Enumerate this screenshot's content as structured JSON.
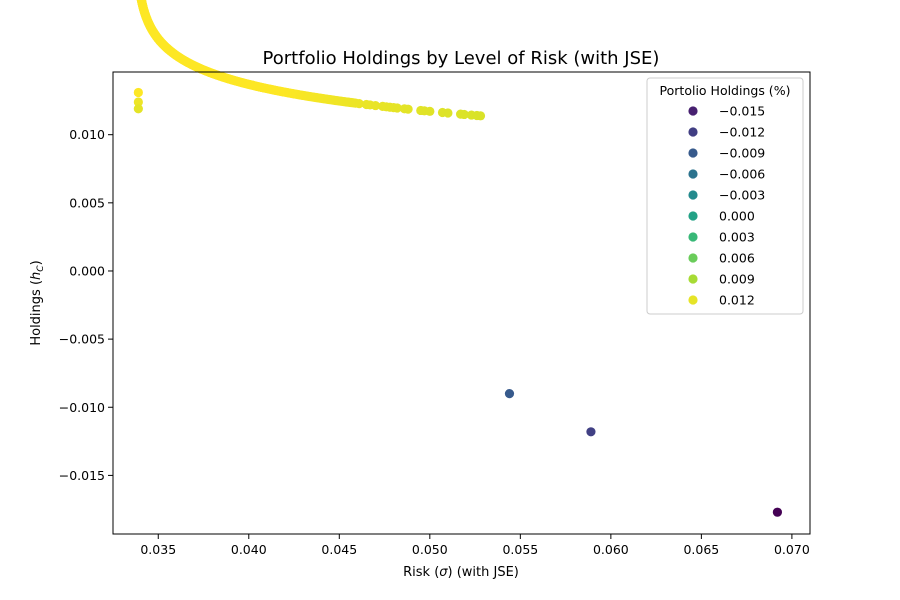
{
  "chart_data": {
    "type": "scatter",
    "title": "Portfolio Holdings by Level of Risk (with JSE)",
    "xlabel_main": "Risk (",
    "xlabel_symbol": "σ",
    "xlabel_tail": ") (with JSE)",
    "ylabel_main": "Holdings (",
    "ylabel_symbol": "h",
    "ylabel_sub": "C",
    "ylabel_tail": ")",
    "xlim": [
      0.0325,
      0.071
    ],
    "ylim": [
      -0.0193,
      0.0146
    ],
    "x_ticks": [
      0.035,
      0.04,
      0.045,
      0.05,
      0.055,
      0.06,
      0.065,
      0.07
    ],
    "x_tick_labels": [
      "0.035",
      "0.040",
      "0.045",
      "0.050",
      "0.055",
      "0.060",
      "0.065",
      "0.070"
    ],
    "y_ticks": [
      -0.015,
      -0.01,
      -0.005,
      0.0,
      0.005,
      0.01
    ],
    "y_tick_labels": [
      "−0.015",
      "−0.010",
      "−0.005",
      "0.000",
      "0.005",
      "0.010"
    ],
    "grid": false,
    "colormap": "viridis",
    "color_range": [
      -0.0177,
      0.0131
    ],
    "curve_model": "holdings ≈ 0.0102 + 0.00207·ln(0.033755/(risk − 0.033755)) along the dense branch",
    "points": [
      {
        "x": 0.0339,
        "y": 0.0131
      },
      {
        "x": 0.0339,
        "y": 0.0124
      },
      {
        "x": 0.0339,
        "y": 0.0119
      },
      {
        "x": 0.0544,
        "y": -0.009
      },
      {
        "x": 0.0589,
        "y": -0.0118
      },
      {
        "x": 0.0692,
        "y": -0.0177
      }
    ],
    "sparse_tail_x": [
      0.0459,
      0.0461,
      0.0465,
      0.0467,
      0.047,
      0.0474,
      0.0476,
      0.0478,
      0.048,
      0.0482,
      0.0486,
      0.0488,
      0.0495,
      0.0497,
      0.05,
      0.0507,
      0.051,
      0.0517,
      0.0519,
      0.0523,
      0.0526,
      0.0528
    ],
    "dense_range": [
      0.034,
      0.0458
    ],
    "dense_count": 260,
    "legend": {
      "title": "Portolio Holdings (%)",
      "position": "upper-right",
      "entries": [
        {
          "label": "−0.015",
          "value": -0.015
        },
        {
          "label": "−0.012",
          "value": -0.012
        },
        {
          "label": "−0.009",
          "value": -0.009
        },
        {
          "label": "−0.006",
          "value": -0.006
        },
        {
          "label": "−0.003",
          "value": -0.003
        },
        {
          "label": "0.000",
          "value": 0.0
        },
        {
          "label": "0.003",
          "value": 0.003
        },
        {
          "label": "0.006",
          "value": 0.006
        },
        {
          "label": "0.009",
          "value": 0.009
        },
        {
          "label": "0.012",
          "value": 0.012
        }
      ]
    }
  }
}
